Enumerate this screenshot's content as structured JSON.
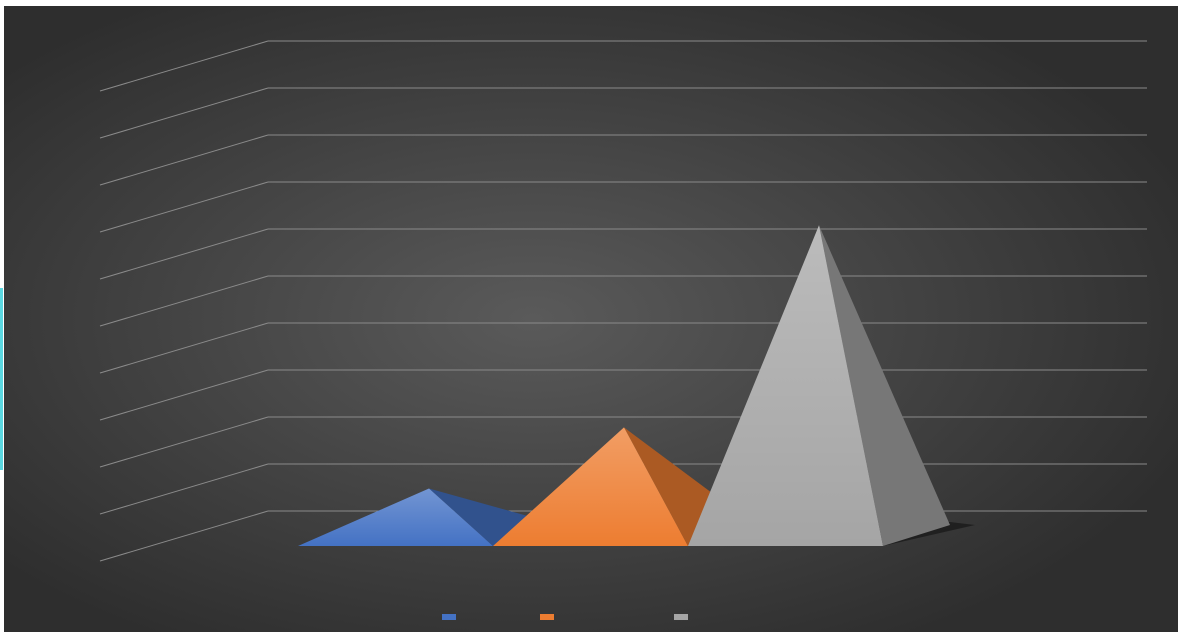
{
  "chart_data": {
    "type": "pyramid3d",
    "values": [
      1,
      2.3,
      6.6
    ],
    "colors": [
      "#4472c4",
      "#ed7d31",
      "#a5a5a5"
    ],
    "ylim": [
      0,
      10
    ],
    "yticks": [
      0,
      1,
      2,
      3,
      4,
      5,
      6,
      7,
      8,
      9,
      10
    ],
    "grid": true
  }
}
